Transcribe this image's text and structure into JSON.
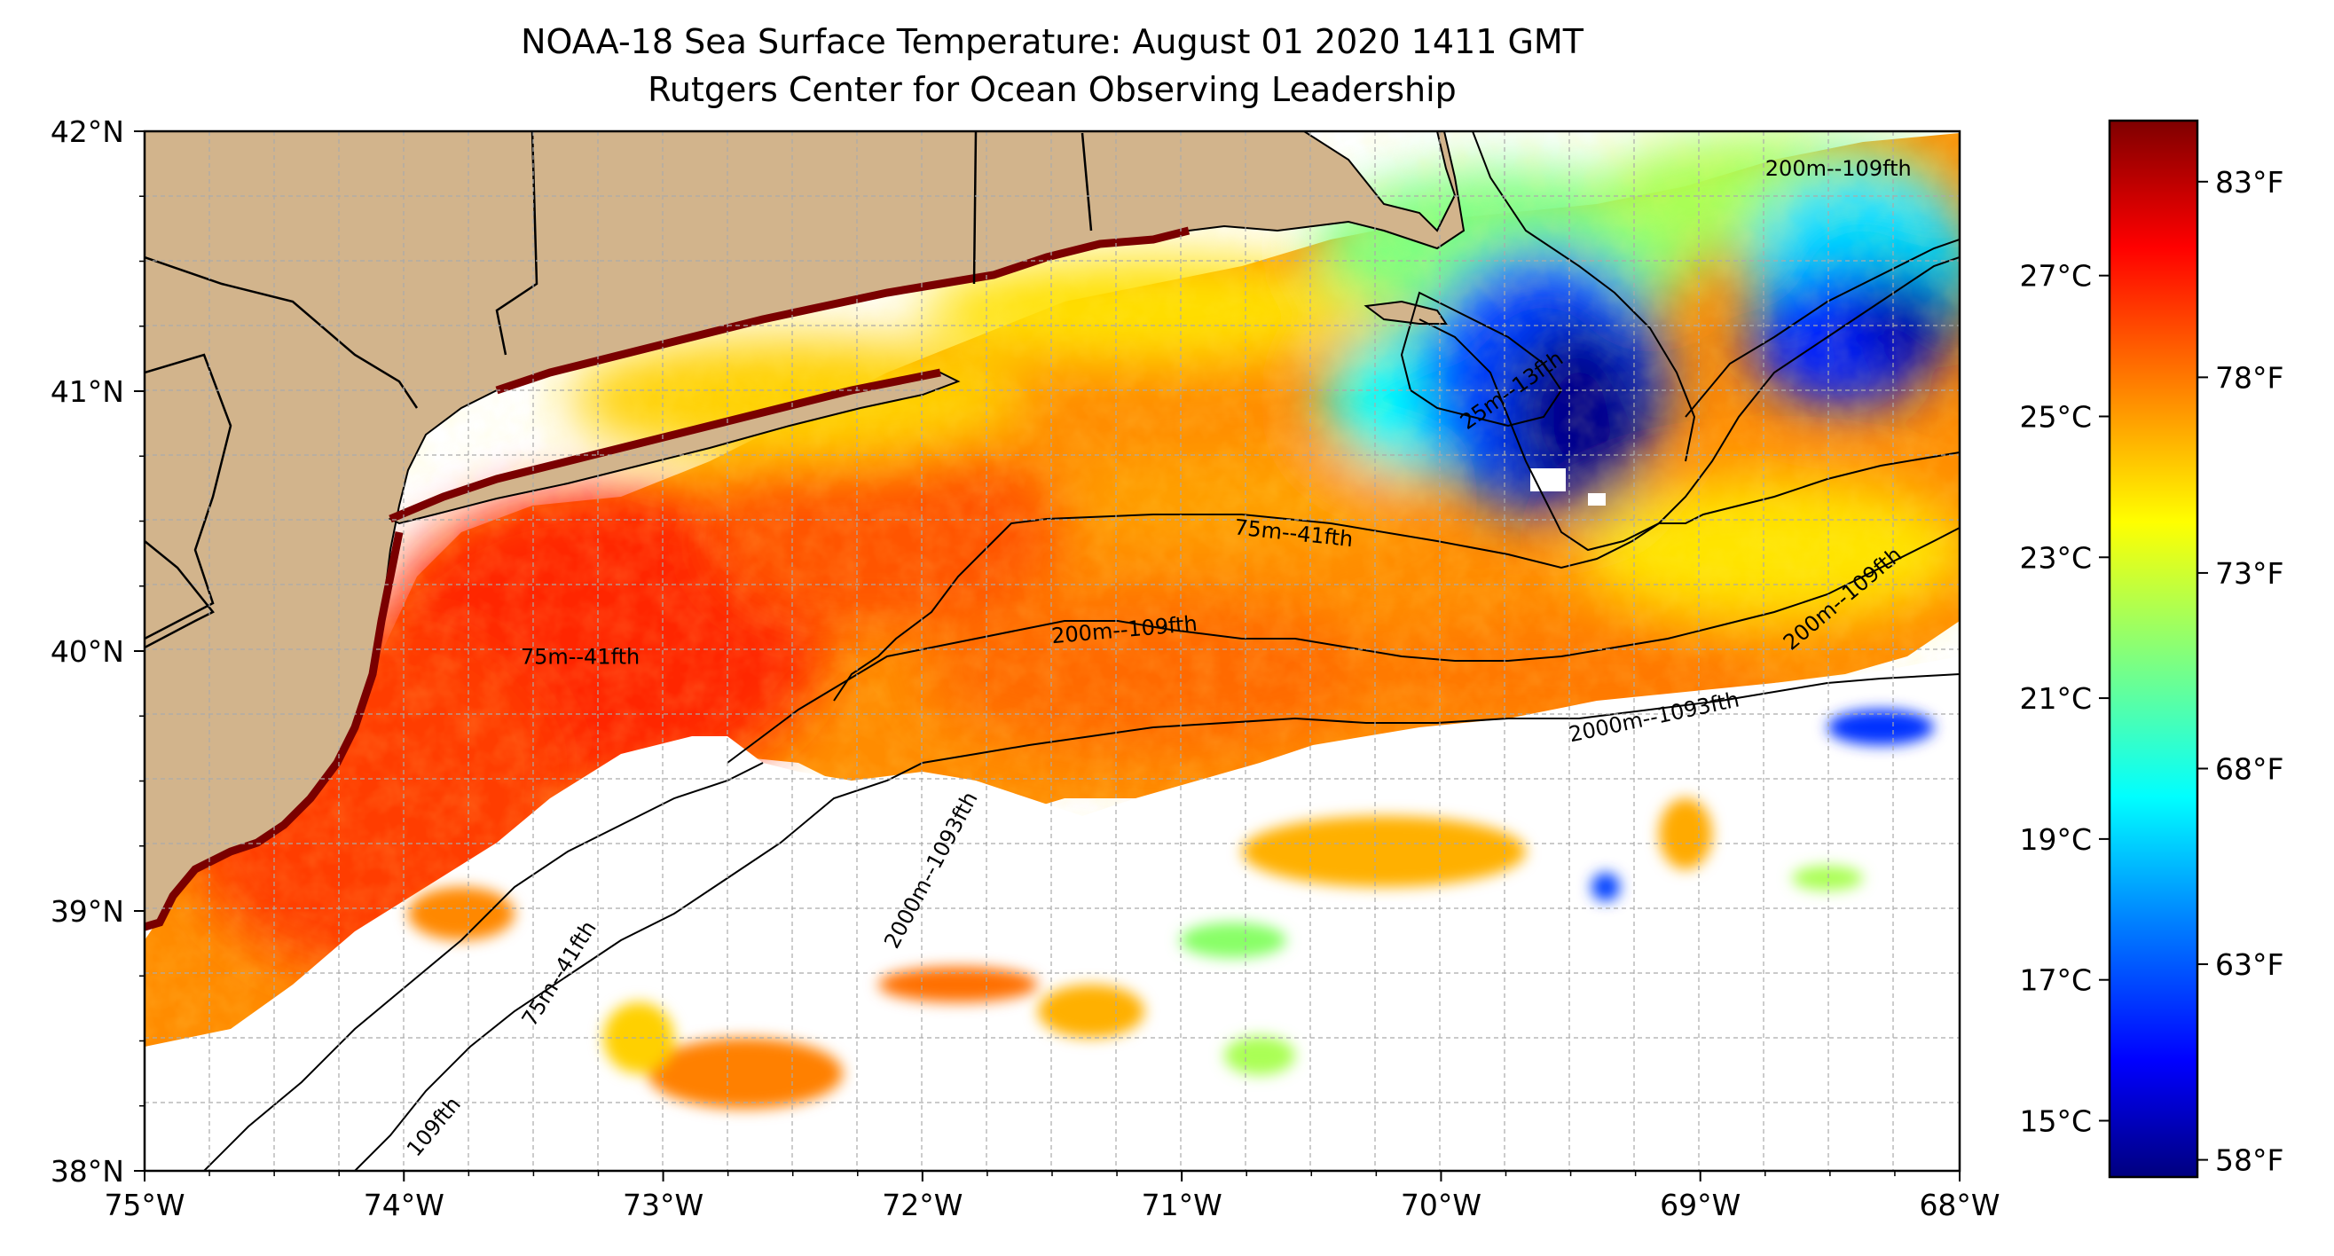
{
  "title": "NOAA-18 Sea Surface Temperature: August 01 2020 1411 GMT",
  "subtitle": "Rutgers Center for Ocean Observing Leadership",
  "lon_ticks": [
    "75°W",
    "74°W",
    "73°W",
    "72°W",
    "71°W",
    "70°W",
    "69°W",
    "68°W"
  ],
  "lat_ticks": [
    "42°N",
    "41°N",
    "40°N",
    "39°N",
    "38°N"
  ],
  "map_extent": {
    "lon_min": -75,
    "lon_max": -68,
    "lat_min": 38,
    "lat_max": 42
  },
  "contour_labels": [
    {
      "text": "75m--41fth",
      "lon": -70.8,
      "lat": 40.45,
      "angle": 6
    },
    {
      "text": "200m--109fth",
      "lon": -71.5,
      "lat": 40.03,
      "angle": -5
    },
    {
      "text": "2000m--1093fth",
      "lon": -69.5,
      "lat": 39.65,
      "angle": -12
    },
    {
      "text": "75m--41fth",
      "lon": -73.55,
      "lat": 39.95,
      "angle": 0
    },
    {
      "text": "200m--109fth",
      "lon": -68.75,
      "lat": 41.83,
      "angle": 0
    },
    {
      "text": "200m--109fth",
      "lon": -68.65,
      "lat": 40.0,
      "angle": -40
    },
    {
      "text": "2000m--1093fth",
      "lon": -72.1,
      "lat": 38.85,
      "angle": -62
    },
    {
      "text": "75m--41fth",
      "lon": -73.5,
      "lat": 38.55,
      "angle": -58
    },
    {
      "text": "109fth",
      "lon": -73.95,
      "lat": 38.05,
      "angle": -50
    },
    {
      "text": "25m--13fth",
      "lon": -69.9,
      "lat": 40.85,
      "angle": -35
    }
  ],
  "colorbar": {
    "celsius_labels": [
      "27°C",
      "25°C",
      "23°C",
      "21°C",
      "19°C",
      "17°C",
      "15°C"
    ],
    "celsius_values": [
      27,
      25,
      23,
      21,
      19,
      17,
      15
    ],
    "fahrenheit_labels": [
      "83°F",
      "78°F",
      "73°F",
      "68°F",
      "63°F",
      "58°F"
    ],
    "fahrenheit_values": [
      83,
      78,
      73,
      68,
      63,
      58
    ],
    "range_c": [
      14.2,
      29.2
    ],
    "colormap": [
      "#00007f",
      "#0000ff",
      "#007fff",
      "#00ffff",
      "#7fff7f",
      "#ffff00",
      "#ff7f00",
      "#ff0000",
      "#7f0000"
    ]
  },
  "colors": {
    "land": "#d2b48c",
    "warm": "#ff3c00",
    "cold": "#0000b0",
    "grid": "#aaaaaa"
  }
}
